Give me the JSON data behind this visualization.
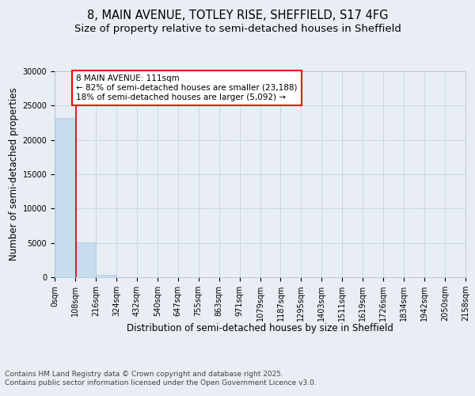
{
  "title_line1": "8, MAIN AVENUE, TOTLEY RISE, SHEFFIELD, S17 4FG",
  "title_line2": "Size of property relative to semi-detached houses in Sheffield",
  "xlabel": "Distribution of semi-detached houses by size in Sheffield",
  "ylabel": "Number of semi-detached properties",
  "property_size": 111,
  "smaller_pct": 82,
  "smaller_count": 23188,
  "larger_pct": 18,
  "larger_count": 5092,
  "bar_edges": [
    0,
    108,
    216,
    324,
    432,
    540,
    647,
    755,
    863,
    971,
    1079,
    1187,
    1295,
    1403,
    1511,
    1619,
    1726,
    1834,
    1942,
    2050,
    2158
  ],
  "bar_heights": [
    23188,
    5092,
    300,
    0,
    0,
    0,
    0,
    0,
    0,
    0,
    0,
    0,
    0,
    0,
    0,
    0,
    0,
    0,
    0,
    0
  ],
  "bar_color": "#c8dcef",
  "bar_edgecolor": "#a8c8e8",
  "vline_x": 111,
  "vline_color": "#cc0000",
  "ylim": [
    0,
    30000
  ],
  "yticks": [
    0,
    5000,
    10000,
    15000,
    20000,
    25000,
    30000
  ],
  "annotation_line1": "8 MAIN AVENUE: 111sqm",
  "annotation_line2": "← 82% of semi-detached houses are smaller (23,188)",
  "annotation_line3": "18% of semi-detached houses are larger (5,092) →",
  "footnote": "Contains HM Land Registry data © Crown copyright and database right 2025.\nContains public sector information licensed under the Open Government Licence v3.0.",
  "background_color": "#e8eef4",
  "plot_bg_color": "#e8eef4",
  "grid_color": "#c8d8e8",
  "title_fontsize": 10.5,
  "subtitle_fontsize": 9.5,
  "tick_fontsize": 7,
  "axis_label_fontsize": 8.5,
  "footnote_fontsize": 6.5
}
